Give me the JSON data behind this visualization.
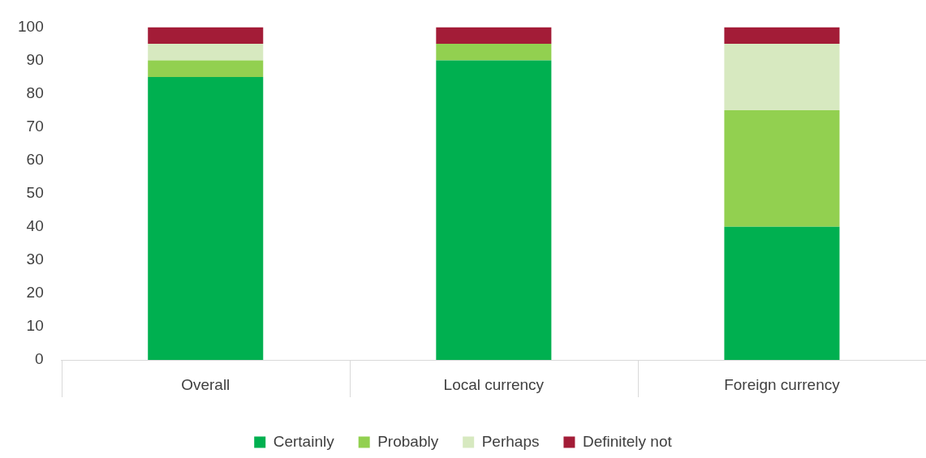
{
  "chart_data": {
    "type": "bar",
    "stacked": true,
    "legend": "bottom",
    "categories": [
      "Overall",
      "Local currency",
      "Foreign currency"
    ],
    "series": [
      {
        "name": "Certainly",
        "color": "#00b050",
        "values": [
          85,
          90,
          40
        ]
      },
      {
        "name": "Probably",
        "color": "#92d050",
        "values": [
          5,
          5,
          35
        ]
      },
      {
        "name": "Perhaps",
        "color": "#d7e9c0",
        "values": [
          5,
          0,
          20
        ]
      },
      {
        "name": "Definitely not",
        "color": "#a31c37",
        "values": [
          5,
          5,
          5
        ]
      }
    ],
    "ylim": [
      0,
      100
    ],
    "yticks": [
      0,
      10,
      20,
      30,
      40,
      50,
      60,
      70,
      80,
      90,
      100
    ]
  }
}
